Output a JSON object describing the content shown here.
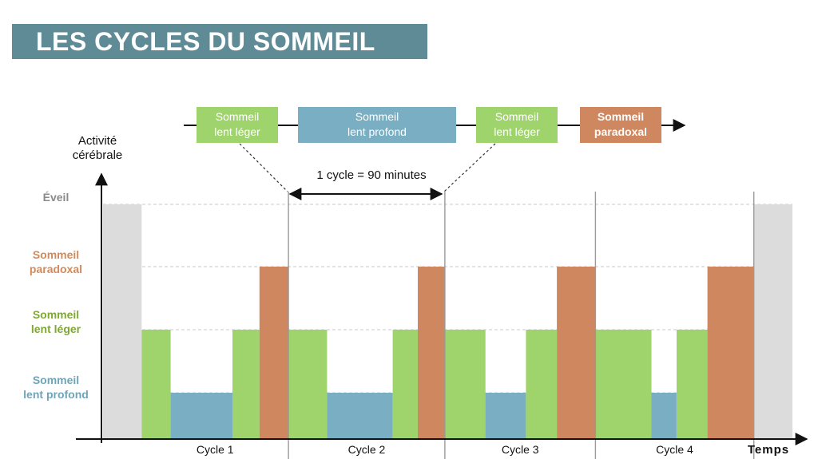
{
  "title": "LES CYCLES DU SOMMEIL",
  "y_axis_title": [
    "Activité",
    "cérébrale"
  ],
  "x_axis_title": "Temps",
  "levels": [
    {
      "key": "eveil",
      "lines": [
        "Éveil"
      ],
      "color": "#8a8a8a"
    },
    {
      "key": "paradoxal",
      "lines": [
        "Sommeil",
        "paradoxal"
      ],
      "color": "#d08a5c"
    },
    {
      "key": "leger",
      "lines": [
        "Sommeil",
        "lent léger"
      ],
      "color": "#7fa832"
    },
    {
      "key": "profond",
      "lines": [
        "Sommeil",
        "lent profond"
      ],
      "color": "#6fa4b8"
    }
  ],
  "legend_stages": [
    {
      "lines": [
        "Sommeil",
        "lent léger"
      ],
      "stage": "leger"
    },
    {
      "lines": [
        "Sommeil",
        "lent profond"
      ],
      "stage": "profond"
    },
    {
      "lines": [
        "Sommeil",
        "lent léger"
      ],
      "stage": "leger"
    },
    {
      "lines": [
        "Sommeil",
        "paradoxal"
      ],
      "stage": "paradoxal"
    }
  ],
  "cycle_annotation": "1 cycle = 90 minutes",
  "cycles": [
    "Cycle 1",
    "Cycle 2",
    "Cycle 3",
    "Cycle 4"
  ],
  "colors": {
    "eveil": "#dcdcdc",
    "leger": "#9fd36b",
    "profond": "#7aaec2",
    "paradoxal": "#cf875f",
    "title_bg": "#5e8b96"
  },
  "chart_data": {
    "type": "bar",
    "levels_order": [
      "profond",
      "leger",
      "paradoxal",
      "eveil"
    ],
    "segments": [
      {
        "stage": "eveil",
        "duration": 2
      },
      {
        "stage": "leger",
        "duration": 1.5
      },
      {
        "stage": "profond",
        "duration": 3.2
      },
      {
        "stage": "leger",
        "duration": 1.4
      },
      {
        "stage": "paradoxal",
        "duration": 1.5
      },
      {
        "stage": "leger",
        "duration": 2
      },
      {
        "stage": "profond",
        "duration": 3.4
      },
      {
        "stage": "leger",
        "duration": 1.3
      },
      {
        "stage": "paradoxal",
        "duration": 1.4
      },
      {
        "stage": "leger",
        "duration": 2.1
      },
      {
        "stage": "profond",
        "duration": 2.1
      },
      {
        "stage": "leger",
        "duration": 1.6
      },
      {
        "stage": "paradoxal",
        "duration": 2
      },
      {
        "stage": "leger",
        "duration": 2.9
      },
      {
        "stage": "profond",
        "duration": 1.3
      },
      {
        "stage": "leger",
        "duration": 1.6
      },
      {
        "stage": "paradoxal",
        "duration": 2.4
      },
      {
        "stage": "eveil",
        "duration": 2
      }
    ]
  }
}
